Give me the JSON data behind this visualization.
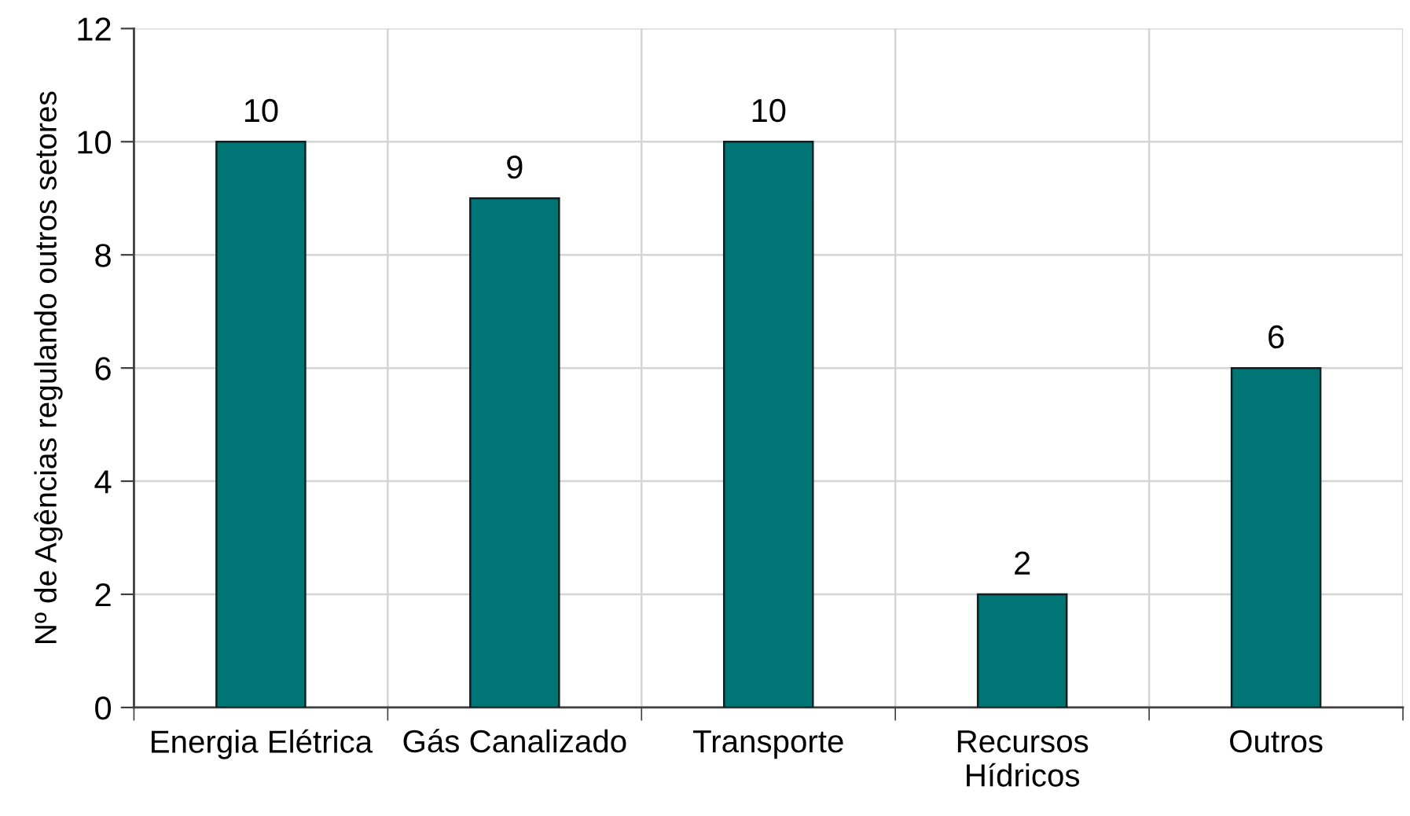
{
  "chart_data": {
    "type": "bar",
    "ylabel": "Nº de Agências regulando outros setores",
    "categories": [
      "Energia Elétrica",
      "Gás Canalizado",
      "Transporte",
      "Recursos\nHídricos",
      "Outros"
    ],
    "values": [
      10,
      9,
      10,
      2,
      6
    ],
    "color": "#007575",
    "ylim": [
      0,
      12
    ],
    "yticks": [
      0,
      2,
      4,
      6,
      8,
      10,
      12
    ],
    "grid": true,
    "data_labels": true
  }
}
